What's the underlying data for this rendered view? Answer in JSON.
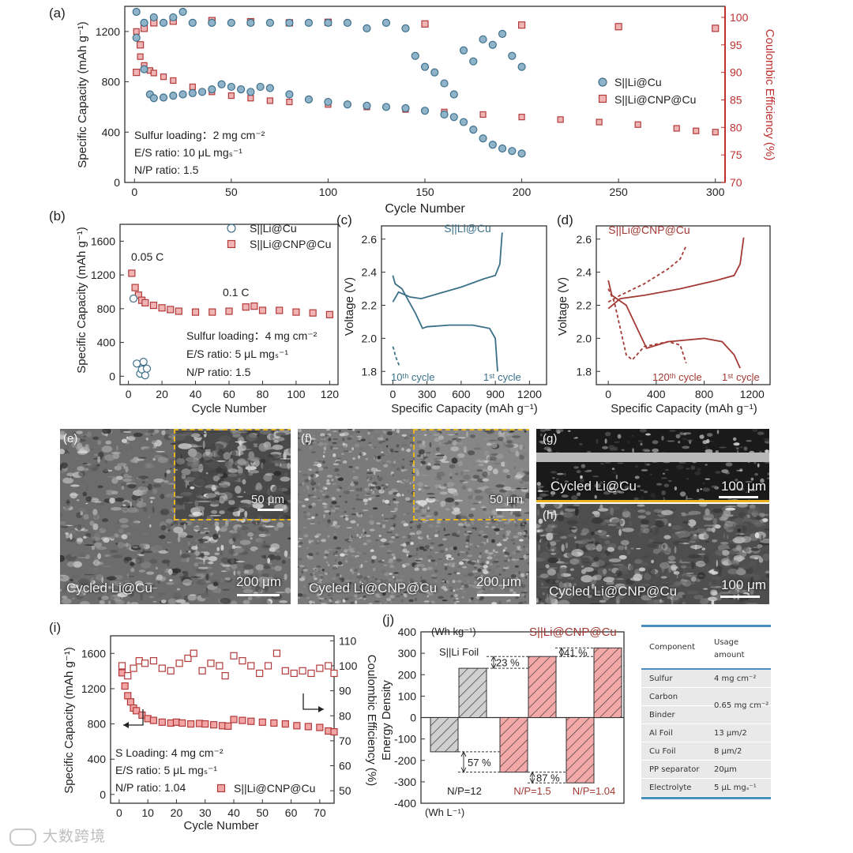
{
  "chart_data": [
    {
      "id": "a",
      "type": "scatter",
      "panel_label": "(a)",
      "xlabel": "Cycle Number",
      "ylabel": "Specific Capacity (mAh g⁻¹)",
      "y2label": "Coulombic Efficiency (%)",
      "xlim": [
        -5,
        305
      ],
      "ylim": [
        0,
        1400
      ],
      "y2lim": [
        70,
        102
      ],
      "xticks": [
        0,
        50,
        100,
        150,
        200,
        250,
        300
      ],
      "yticks": [
        0,
        400,
        800,
        1200
      ],
      "y2ticks": [
        70,
        75,
        80,
        85,
        90,
        95,
        100
      ],
      "legend": [
        "S||Li@Cu",
        "S||Li@CNP@Cu"
      ],
      "annotations": [
        "Sulfur loading：2 mg cm⁻²",
        "E/S ratio: 10 μL mgₛ⁻¹",
        "N/P ratio: 1.5"
      ],
      "series": [
        {
          "name": "S||Li@Cu capacity",
          "axis": "left",
          "x": [
            1,
            5,
            8,
            10,
            15,
            20,
            25,
            30,
            35,
            40,
            45,
            50,
            55,
            60,
            65,
            70,
            80,
            90,
            100,
            110,
            120,
            130,
            140,
            150,
            160,
            165,
            170,
            175,
            180,
            185,
            190,
            195,
            200
          ],
          "y": [
            1150,
            900,
            700,
            670,
            675,
            690,
            700,
            710,
            720,
            740,
            780,
            760,
            740,
            720,
            760,
            750,
            700,
            660,
            640,
            620,
            610,
            600,
            590,
            570,
            540,
            520,
            480,
            420,
            350,
            300,
            270,
            250,
            230
          ]
        },
        {
          "name": "S||Li@Cu efficiency",
          "axis": "right",
          "x": [
            1,
            5,
            10,
            15,
            20,
            25,
            30,
            40,
            50,
            60,
            70,
            80,
            90,
            100,
            110,
            120,
            130,
            140,
            145,
            150,
            155,
            160,
            165,
            170,
            175,
            180,
            185,
            190,
            195,
            200
          ],
          "y": [
            101,
            99,
            100,
            99,
            100,
            101,
            99,
            99,
            99,
            99,
            99,
            99,
            99,
            99,
            99,
            98,
            99,
            98,
            93,
            91,
            90,
            88,
            86,
            94,
            92,
            96,
            95,
            97,
            93,
            91
          ]
        },
        {
          "name": "S||Li@CNP@Cu capacity",
          "axis": "left",
          "x": [
            1,
            3,
            5,
            8,
            10,
            15,
            20,
            30,
            40,
            50,
            60,
            70,
            80,
            100,
            120,
            140,
            160,
            180,
            200,
            220,
            240,
            260,
            280,
            290,
            300
          ],
          "y": [
            1200,
            1000,
            930,
            890,
            870,
            840,
            810,
            760,
            720,
            690,
            670,
            650,
            640,
            620,
            600,
            580,
            560,
            540,
            520,
            500,
            480,
            460,
            430,
            410,
            400
          ]
        },
        {
          "name": "S||Li@CNP@Cu efficiency",
          "axis": "right",
          "x": [
            1,
            3,
            5,
            10,
            20,
            40,
            60,
            80,
            100,
            150,
            200,
            250,
            300
          ],
          "y": [
            90,
            95,
            98,
            99,
            99.3,
            99.4,
            99.2,
            99.0,
            99.1,
            98.8,
            98.6,
            98.3,
            98.0
          ]
        }
      ]
    },
    {
      "id": "b",
      "type": "scatter",
      "panel_label": "(b)",
      "xlabel": "Cycle Number",
      "ylabel": "Specific Capacity (mAh g⁻¹)",
      "xlim": [
        -5,
        125
      ],
      "ylim": [
        -100,
        1800
      ],
      "xticks": [
        0,
        20,
        40,
        60,
        80,
        100,
        120
      ],
      "yticks": [
        0,
        400,
        800,
        1200,
        1600
      ],
      "legend": [
        "S||Li@Cu",
        "S||Li@CNP@Cu"
      ],
      "annotations": [
        "0.05 C",
        "0.1 C",
        "Sulfur loading：4 mg cm⁻²",
        "E/S ratio:  5  μL mgₛ⁻¹",
        "N/P ratio: 1.5"
      ],
      "series": [
        {
          "name": "S||Li@Cu",
          "x": [
            3,
            5,
            7,
            8,
            9,
            10,
            11
          ],
          "y": [
            920,
            150,
            30,
            80,
            170,
            10,
            90
          ]
        },
        {
          "name": "S||Li@CNP@Cu",
          "x": [
            2,
            4,
            6,
            8,
            10,
            15,
            20,
            25,
            30,
            40,
            50,
            60,
            70,
            75,
            80,
            90,
            100,
            110,
            120
          ],
          "y": [
            1220,
            1050,
            960,
            900,
            870,
            840,
            810,
            790,
            770,
            760,
            760,
            770,
            820,
            830,
            780,
            780,
            760,
            750,
            730
          ]
        }
      ]
    },
    {
      "id": "c",
      "type": "line",
      "panel_label": "(c)",
      "xlabel": "Specific Capacity (mAh g⁻¹)",
      "ylabel": "Voltage (V)",
      "xlim": [
        -100,
        1350
      ],
      "ylim": [
        1.72,
        2.68
      ],
      "xticks": [
        0,
        300,
        600,
        900,
        1200
      ],
      "yticks": [
        1.8,
        2.0,
        2.2,
        2.4,
        2.6
      ],
      "legend_title": "S||Li@Cu",
      "annotations": [
        "10ᵗʰ cycle",
        "1ˢᵗ cycle"
      ],
      "series": [
        {
          "name": "1st discharge",
          "x": [
            0,
            20,
            80,
            200,
            260,
            300,
            500,
            700,
            850,
            900,
            920
          ],
          "y": [
            2.38,
            2.33,
            2.3,
            2.15,
            2.06,
            2.07,
            2.08,
            2.08,
            2.06,
            2.0,
            1.8
          ]
        },
        {
          "name": "1st charge",
          "x": [
            0,
            50,
            150,
            250,
            400,
            600,
            800,
            900,
            940,
            960
          ],
          "y": [
            2.22,
            2.28,
            2.25,
            2.24,
            2.27,
            2.31,
            2.36,
            2.38,
            2.45,
            2.64
          ]
        },
        {
          "name": "10th cycle",
          "x": [
            0,
            10,
            20,
            40,
            60
          ],
          "y": [
            1.95,
            1.93,
            1.9,
            1.86,
            1.83
          ]
        }
      ]
    },
    {
      "id": "d",
      "type": "line",
      "panel_label": "(d)",
      "xlabel": "Specific Capacity (mAh g⁻¹)",
      "ylabel": "Voltage (V)",
      "xlim": [
        -100,
        1350
      ],
      "ylim": [
        1.72,
        2.68
      ],
      "xticks": [
        0,
        400,
        800,
        1200
      ],
      "yticks": [
        1.8,
        2.0,
        2.2,
        2.4,
        2.6
      ],
      "legend_title": "S||Li@CNP@Cu",
      "annotations": [
        "120ᵗʰ cycle",
        "1ˢᵗ cycle"
      ],
      "series": [
        {
          "name": "1st discharge",
          "x": [
            0,
            30,
            150,
            280,
            320,
            500,
            800,
            950,
            1050,
            1100
          ],
          "y": [
            2.35,
            2.26,
            2.2,
            2.0,
            1.94,
            1.98,
            2.0,
            1.98,
            1.9,
            1.82
          ]
        },
        {
          "name": "1st charge",
          "x": [
            0,
            100,
            300,
            600,
            900,
            1050,
            1100,
            1130
          ],
          "y": [
            2.18,
            2.24,
            2.26,
            2.3,
            2.35,
            2.38,
            2.45,
            2.61
          ]
        },
        {
          "name": "120th discharge",
          "x": [
            0,
            50,
            150,
            200,
            300,
            500,
            600,
            650
          ],
          "y": [
            2.3,
            2.22,
            1.9,
            1.87,
            1.95,
            1.98,
            1.96,
            1.85
          ]
        },
        {
          "name": "120th charge",
          "x": [
            0,
            100,
            300,
            500,
            600,
            650
          ],
          "y": [
            2.22,
            2.26,
            2.33,
            2.42,
            2.48,
            2.56
          ]
        }
      ]
    },
    {
      "id": "i",
      "type": "scatter",
      "panel_label": "(i)",
      "xlabel": "Cycle Number",
      "ylabel": "Specific Capacity (mAh g⁻¹)",
      "y2label": "Coulombic Efficiency (%)",
      "xlim": [
        -3,
        75
      ],
      "ylim": [
        -100,
        1800
      ],
      "y2lim": [
        45,
        112
      ],
      "xticks": [
        0,
        10,
        20,
        30,
        40,
        50,
        60,
        70
      ],
      "yticks": [
        0,
        400,
        800,
        1200,
        1600
      ],
      "y2ticks": [
        50,
        60,
        70,
        80,
        90,
        100,
        110
      ],
      "legend": [
        "S||Li@CNP@Cu"
      ],
      "annotations": [
        "S Loading: 4 mg cm⁻²",
        "E/S ratio: 5 μL mgₛ⁻¹",
        "N/P ratio: 1.04"
      ],
      "series": [
        {
          "name": "Capacity",
          "axis": "left",
          "x": [
            1,
            2,
            3,
            4,
            5,
            6,
            8,
            10,
            12,
            15,
            18,
            20,
            22,
            25,
            28,
            30,
            33,
            36,
            38,
            40,
            43,
            46,
            50,
            54,
            58,
            62,
            66,
            70,
            73,
            75
          ],
          "y": [
            1380,
            1230,
            1120,
            1050,
            980,
            950,
            900,
            860,
            840,
            820,
            810,
            820,
            810,
            800,
            805,
            800,
            790,
            780,
            775,
            850,
            840,
            830,
            820,
            810,
            800,
            780,
            770,
            760,
            720,
            710
          ]
        },
        {
          "name": "Coulombic Efficiency",
          "axis": "right",
          "x": [
            1,
            3,
            5,
            7,
            9,
            12,
            15,
            18,
            21,
            24,
            26,
            29,
            32,
            35,
            37,
            40,
            43,
            46,
            49,
            52,
            55,
            58,
            61,
            64,
            67,
            70,
            73,
            75
          ],
          "y": [
            100,
            96,
            99,
            102,
            101,
            102,
            99,
            98,
            101,
            103,
            105,
            98,
            101,
            100,
            96,
            104,
            102,
            100,
            97,
            100,
            105,
            98,
            97,
            98,
            97,
            99,
            100,
            97
          ]
        }
      ]
    },
    {
      "id": "j",
      "type": "bar",
      "panel_label": "(j)",
      "ylabel": "Energy Density",
      "unit_top": "(Wh kg⁻¹)",
      "unit_bottom": "(Wh L⁻¹)",
      "ylim": [
        -400,
        400
      ],
      "yticks": [
        -400,
        -300,
        -200,
        -100,
        0,
        100,
        200,
        300,
        400
      ],
      "groups": [
        "N/P=12",
        "N/P=1.5",
        "N/P=1.04"
      ],
      "group_titles": [
        "S||Li Foil",
        "S||Li@CNP@Cu"
      ],
      "series": [
        {
          "name": "Gravimetric (Wh kg⁻¹)",
          "values": [
            230,
            285,
            325
          ]
        },
        {
          "name": "Volumetric (Wh L⁻¹)",
          "values": [
            -160,
            -255,
            -305
          ]
        }
      ],
      "improvements": [
        "23 %",
        "41 %",
        "57 %",
        "87 %"
      ]
    }
  ],
  "sem_panels": [
    {
      "label": "(e)",
      "caption": "Cycled Li@Cu",
      "scale": "200 μm",
      "inset_scale": "50 μm"
    },
    {
      "label": "(f)",
      "caption": "Cycled Li@CNP@Cu",
      "scale": "200 μm",
      "inset_scale": "50 μm"
    },
    {
      "label": "(g)",
      "caption": "Cycled Li@Cu",
      "scale": "100 μm"
    },
    {
      "label": "(h)",
      "caption": "Cycled Li@CNP@Cu",
      "scale": "100 μm"
    }
  ],
  "usage_table": {
    "headers": [
      "Component",
      "Usage amount"
    ],
    "rows": [
      {
        "component": "Sulfur",
        "amount": "4 mg cm⁻²"
      },
      {
        "component": "Carbon",
        "amount": "0.65 mg cm⁻²"
      },
      {
        "component": "Binder",
        "amount": ""
      },
      {
        "component": "Al Foil",
        "amount": "13 μm/2"
      },
      {
        "component": "Cu Foil",
        "amount": "8 μm/2"
      },
      {
        "component": "PP separator",
        "amount": "20μm"
      },
      {
        "component": "Electrolyte",
        "amount": "5 μL mgₛ⁻¹"
      }
    ]
  },
  "watermark": "大数跨境",
  "colors": {
    "blue_fill": "#8fb3c9",
    "blue_edge": "#3f6f8a",
    "red_fill": "#f0b4b4",
    "red_edge": "#b23a3a",
    "line_blue": "#3b7089",
    "line_red": "#a33a35",
    "axis_red": "#c0302f",
    "gold": "#e8b520",
    "gray_bar": "#d0d0d0",
    "pink_bar": "#f4a9a9",
    "table_row": "#e9e9e9",
    "table_rule": "#4a8fbf"
  }
}
